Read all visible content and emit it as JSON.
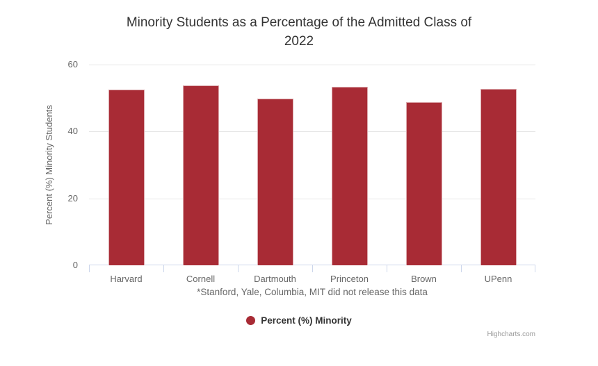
{
  "title": {
    "line1": "Minority Students as a Percentage of the Admitted Class of",
    "line2": "2022",
    "full": "Minority Students as a Percentage of the Admitted Class of 2022"
  },
  "chart_data": {
    "type": "bar",
    "title": "Minority Students as a Percentage of the Admitted Class of 2022",
    "categories": [
      "Harvard",
      "Cornell",
      "Dartmouth",
      "Princeton",
      "Brown",
      "UPenn"
    ],
    "series": [
      {
        "name": "Percent (%) Minority",
        "values": [
          52.5,
          53.8,
          49.8,
          53.4,
          48.7,
          52.7
        ]
      }
    ],
    "xlabel": "*Stanford, Yale, Columbia, MIT did not release this data",
    "ylabel": "Percent (%) Minority Students",
    "ylim": [
      0,
      60
    ],
    "yticks": [
      0,
      20,
      40,
      60
    ],
    "grid": true,
    "legend_position": "bottom",
    "bar_color": "#A82B35"
  },
  "legend": {
    "label": "Percent (%) Minority",
    "marker_icon": "circle-icon"
  },
  "credits": {
    "label": "Highcharts.com"
  },
  "colors": {
    "bar": "#A82B35",
    "title_text": "#333333",
    "axis_text": "#666666",
    "legend_text": "#333333",
    "gridline": "#E6E6E6",
    "axis_line": "#CCD6EB",
    "credits_text": "#999999",
    "background": "#FFFFFF"
  }
}
